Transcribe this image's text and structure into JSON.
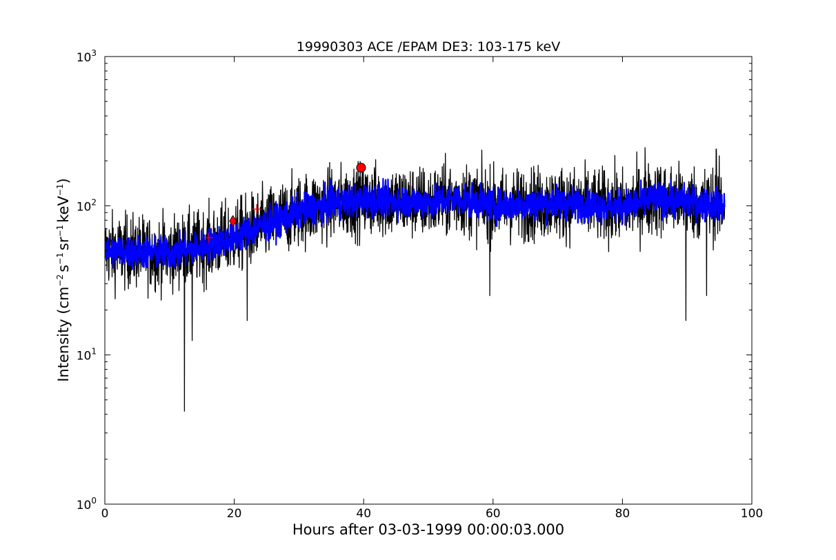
{
  "chart_data": {
    "type": "line",
    "title": "19990303 ACE /EPAM DE3: 103-175 keV",
    "xlabel": "Hours after 03-03-1999 00:00:03.000",
    "ylabel": {
      "prefix": "Intensity (cm",
      "sup1": "−2",
      "mid1": "s",
      "sup2": "−1",
      "mid2": "sr",
      "sup3": "−1",
      "mid3": "keV",
      "sup4": "−1",
      "suffix": ")"
    },
    "xlim": [
      0,
      100
    ],
    "ylim": [
      1,
      1000
    ],
    "yscale": "log",
    "grid": false,
    "x_ticks": [
      {
        "value": 0,
        "label": "0"
      },
      {
        "value": 20,
        "label": "20"
      },
      {
        "value": 40,
        "label": "40"
      },
      {
        "value": 60,
        "label": "60"
      },
      {
        "value": 80,
        "label": "80"
      },
      {
        "value": 100,
        "label": "100"
      }
    ],
    "y_ticks": [
      {
        "value": 1,
        "base": "10",
        "exp": "0"
      },
      {
        "value": 10,
        "base": "10",
        "exp": "1"
      },
      {
        "value": 100,
        "base": "10",
        "exp": "2"
      },
      {
        "value": 1000,
        "base": "10",
        "exp": "3"
      }
    ],
    "series": [
      {
        "color": "#000000",
        "x_range": [
          0,
          95.8
        ],
        "trend": [
          [
            0,
            50
          ],
          [
            10,
            48
          ],
          [
            15,
            53
          ],
          [
            20,
            62
          ],
          [
            25,
            75
          ],
          [
            30,
            92
          ],
          [
            35,
            103
          ],
          [
            40,
            110
          ],
          [
            50,
            105
          ],
          [
            55,
            112
          ],
          [
            60,
            100
          ],
          [
            70,
            105
          ],
          [
            80,
            98
          ],
          [
            85,
            112
          ],
          [
            95.8,
            100
          ]
        ],
        "noise_factor": 1.45,
        "spikes": [
          {
            "x": 12.3,
            "y": 4.2
          },
          {
            "x": 13.5,
            "y": 12.5
          },
          {
            "x": 22.0,
            "y": 17
          },
          {
            "x": 59.5,
            "y": 25
          },
          {
            "x": 89.8,
            "y": 17
          },
          {
            "x": 93.0,
            "y": 25
          },
          {
            "x": 83.5,
            "y": 245
          },
          {
            "x": 94.5,
            "y": 240
          }
        ]
      },
      {
        "color": "#0000ff",
        "x_range": [
          0,
          95.8
        ],
        "trend": [
          [
            0,
            50
          ],
          [
            10,
            48
          ],
          [
            15,
            53
          ],
          [
            20,
            62
          ],
          [
            25,
            75
          ],
          [
            30,
            92
          ],
          [
            35,
            103
          ],
          [
            40,
            110
          ],
          [
            50,
            105
          ],
          [
            55,
            112
          ],
          [
            60,
            100
          ],
          [
            70,
            105
          ],
          [
            80,
            98
          ],
          [
            85,
            112
          ],
          [
            95.8,
            100
          ]
        ],
        "noise_factor": 1.18
      }
    ],
    "markers": [
      {
        "shape": "plus",
        "x": 16.0,
        "y": 61,
        "color": "#ff0000"
      },
      {
        "shape": "diamond",
        "x": 19.8,
        "y": 79,
        "color": "#ff0000"
      },
      {
        "shape": "plus",
        "x": 23.5,
        "y": 95,
        "color": "#ff0000"
      },
      {
        "shape": "circle",
        "x": 39.6,
        "y": 180,
        "color": "#ff0000"
      }
    ]
  }
}
